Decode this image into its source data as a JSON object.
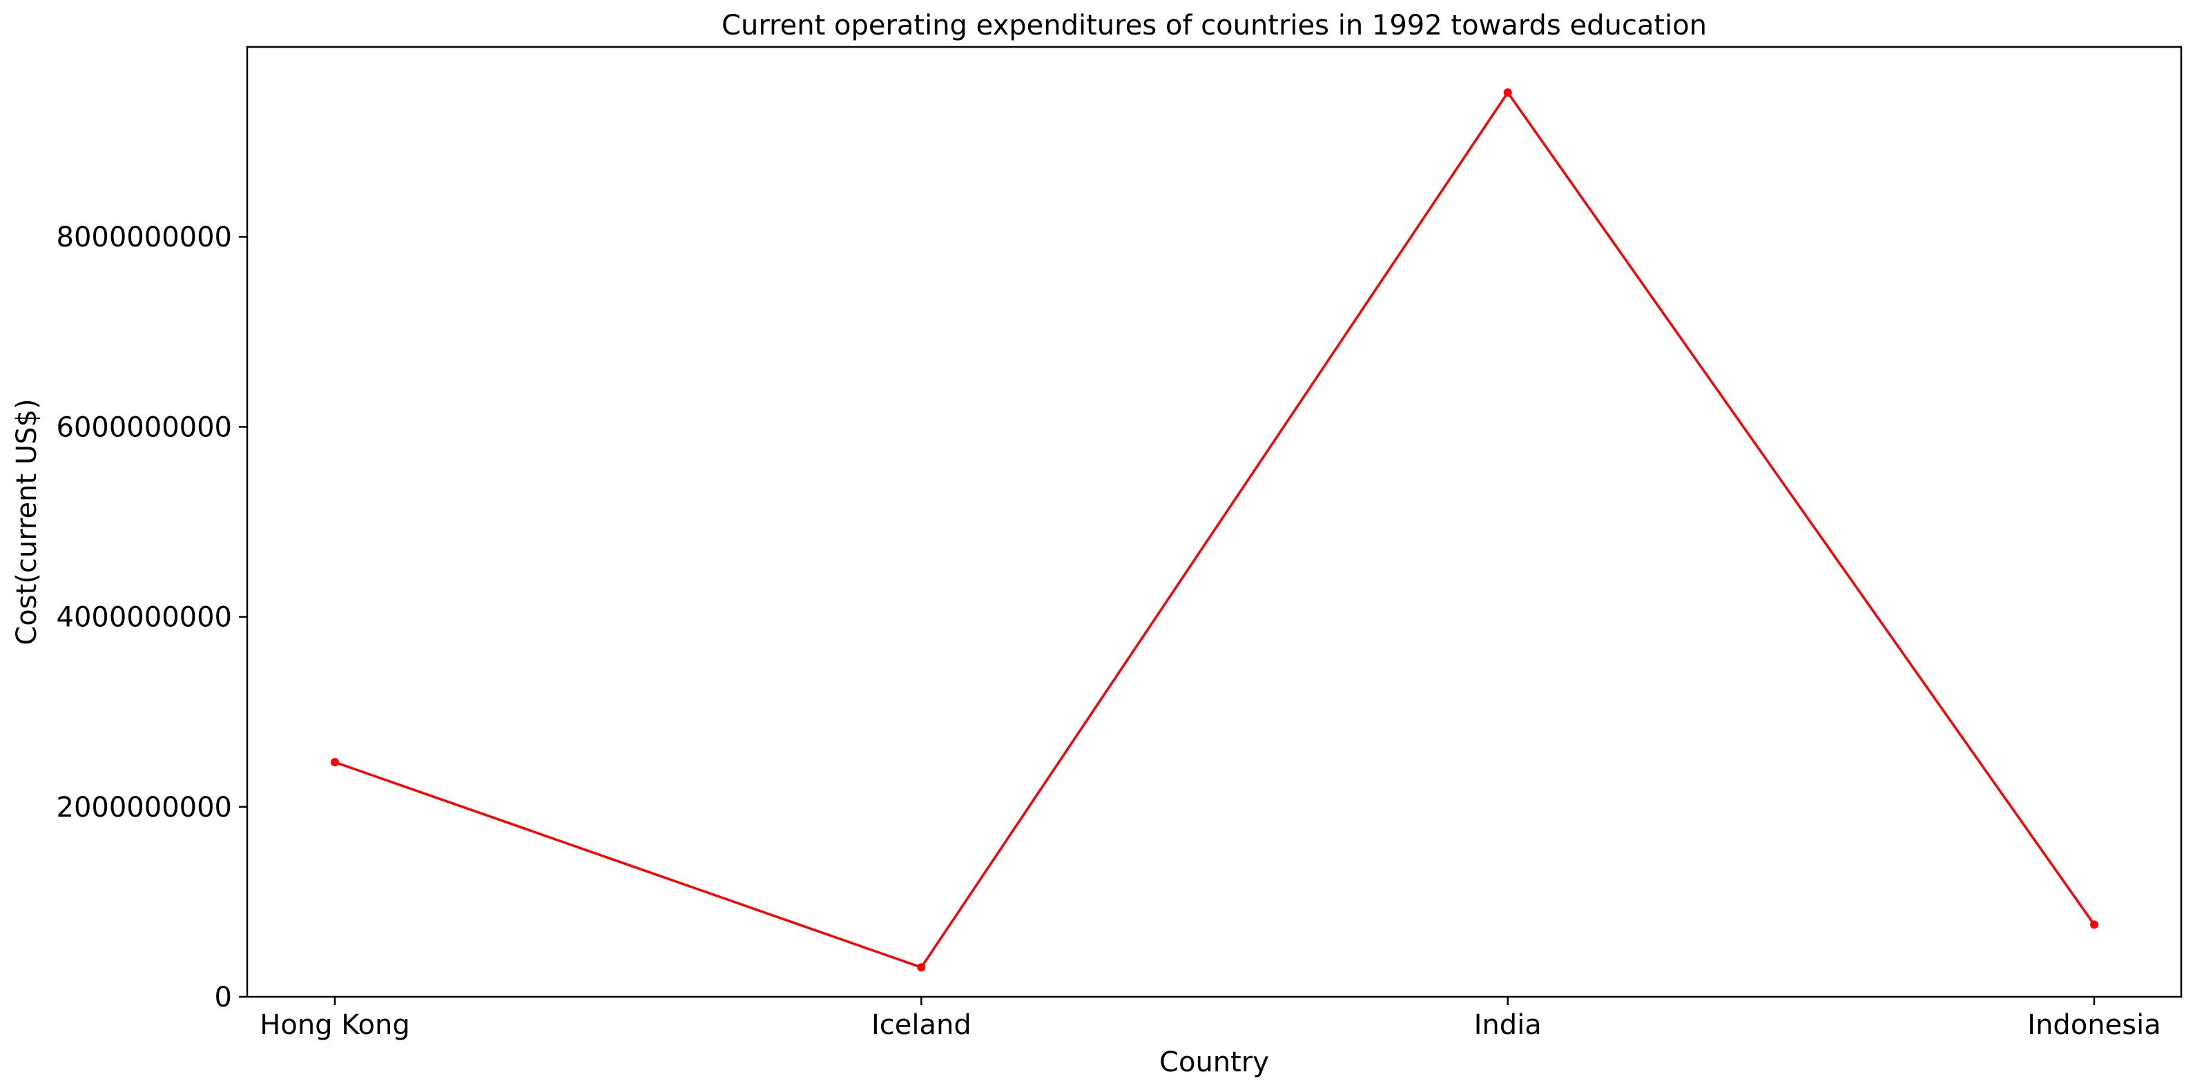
{
  "chart_data": {
    "type": "line",
    "title": "Current operating expenditures of countries in 1992 towards education",
    "xlabel": "Country",
    "ylabel": "Cost(current US$)",
    "categories": [
      "Hong Kong",
      "Iceland",
      "India",
      "Indonesia"
    ],
    "series": [
      {
        "values": [
          2470000000,
          310000000,
          9520000000,
          760000000
        ],
        "color": "#ff0000",
        "marker": "dot"
      }
    ],
    "ylim": [
      0,
      10000000000
    ],
    "yticks": [
      0,
      2000000000,
      4000000000,
      6000000000,
      8000000000
    ],
    "ytick_labels": [
      "0",
      "2000000000",
      "4000000000",
      "6000000000",
      "8000000000"
    ],
    "grid": false,
    "legend": "none"
  }
}
